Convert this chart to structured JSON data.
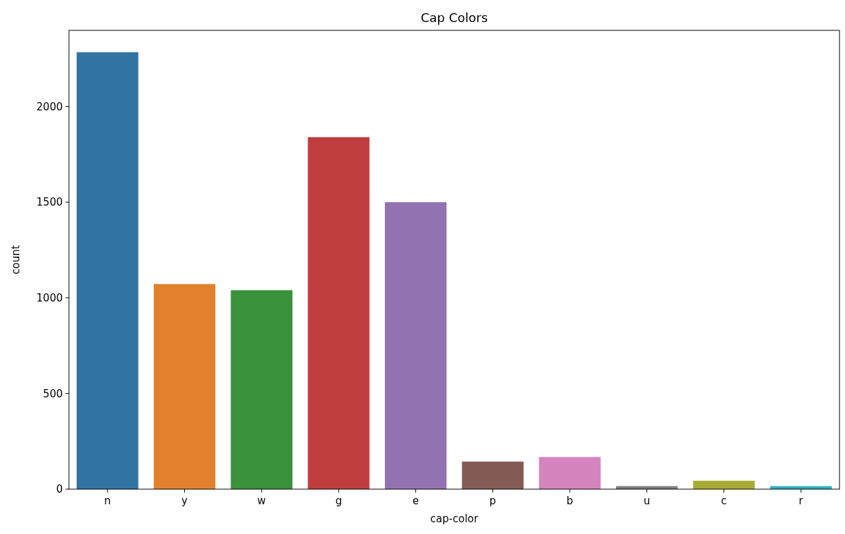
{
  "chart_data": {
    "type": "bar",
    "title": "Cap Colors",
    "xlabel": "cap-color",
    "ylabel": "count",
    "categories": [
      "n",
      "y",
      "w",
      "g",
      "e",
      "p",
      "b",
      "u",
      "c",
      "r"
    ],
    "values": [
      2284,
      1072,
      1040,
      1840,
      1500,
      144,
      168,
      16,
      44,
      16
    ],
    "colors": [
      "#3274a1",
      "#e1812c",
      "#3a923a",
      "#c03d3e",
      "#9372b2",
      "#845b53",
      "#d684bd",
      "#7f7f7f",
      "#a9aa35",
      "#2eb3c2"
    ],
    "ylim": [
      0,
      2398.2
    ],
    "yticks": [
      0,
      500,
      1000,
      1500,
      2000
    ],
    "grid": false
  }
}
